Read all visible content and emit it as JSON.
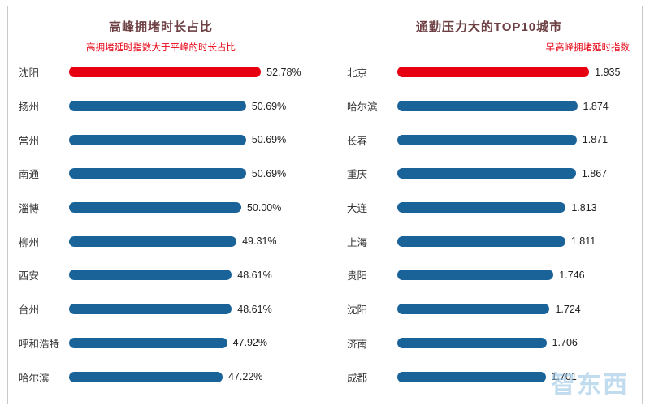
{
  "page": {
    "watermark": "智东西"
  },
  "chart_data": [
    {
      "type": "bar",
      "orientation": "horizontal",
      "title": "高峰拥堵时长占比",
      "subtitle": "高拥堵延时指数大于平峰的时长占比",
      "categories": [
        "沈阳",
        "扬州",
        "常州",
        "南通",
        "淄博",
        "柳州",
        "西安",
        "台州",
        "呼和浩特",
        "哈尔滨"
      ],
      "values": [
        52.78,
        50.69,
        50.69,
        50.69,
        50.0,
        49.31,
        48.61,
        48.61,
        47.92,
        47.22
      ],
      "value_labels": [
        "52.78%",
        "50.69%",
        "50.69%",
        "50.69%",
        "50.00%",
        "49.31%",
        "48.61%",
        "48.61%",
        "47.92%",
        "47.22%"
      ],
      "highlight_index": 0,
      "bar_color": "#1a6399",
      "highlight_color": "#e60012",
      "legend_position": "none",
      "grid": false
    },
    {
      "type": "bar",
      "orientation": "horizontal",
      "title": "通勤压力大的TOP10城市",
      "subtitle": "早高峰拥堵延时指数",
      "categories": [
        "北京",
        "哈尔滨",
        "长春",
        "重庆",
        "大连",
        "上海",
        "贵阳",
        "沈阳",
        "济南",
        "成都"
      ],
      "values": [
        1.935,
        1.874,
        1.871,
        1.867,
        1.813,
        1.811,
        1.746,
        1.724,
        1.706,
        1.701
      ],
      "value_labels": [
        "1.935",
        "1.874",
        "1.871",
        "1.867",
        "1.813",
        "1.811",
        "1.746",
        "1.724",
        "1.706",
        "1.701"
      ],
      "highlight_index": 0,
      "bar_color": "#1a6399",
      "highlight_color": "#e60012",
      "legend_position": "none",
      "grid": false
    }
  ]
}
